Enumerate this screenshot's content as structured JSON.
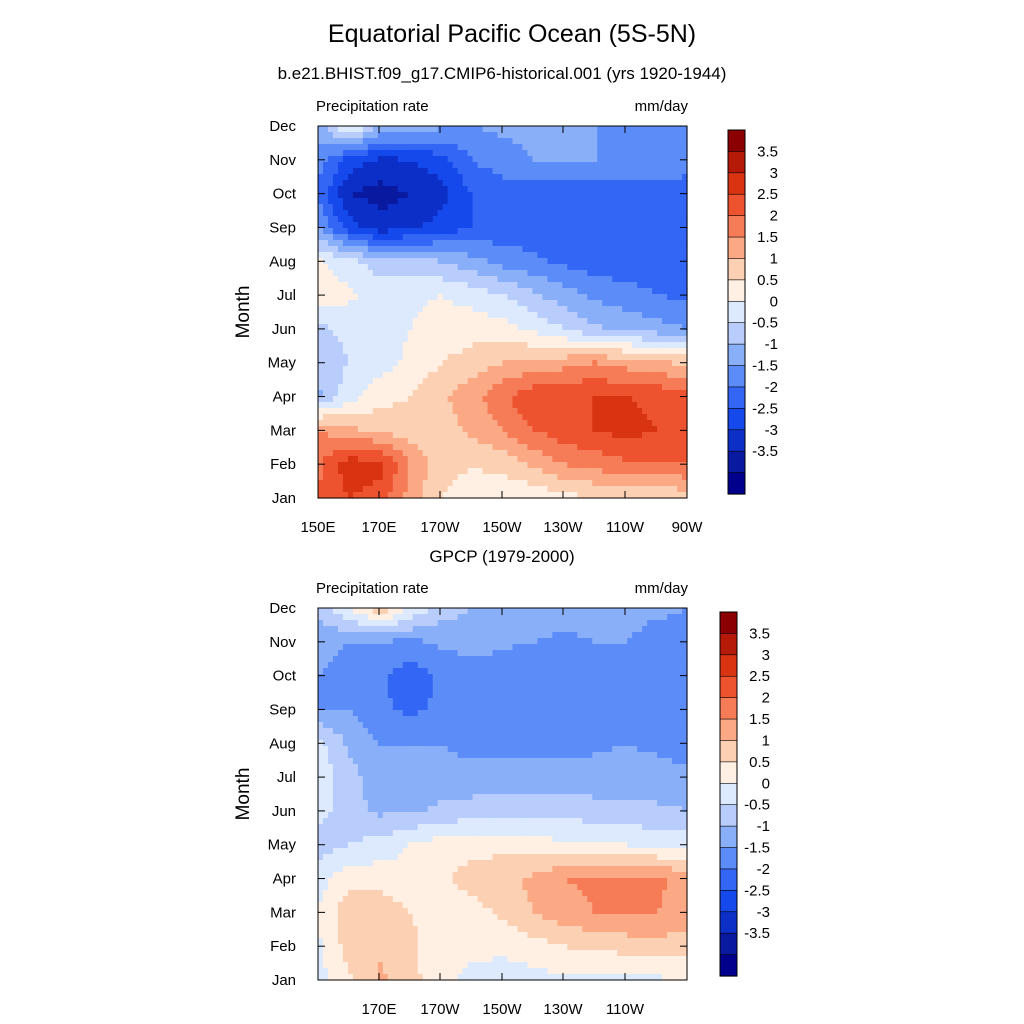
{
  "page": {
    "title": "Equatorial Pacific Ocean (5S-5N)"
  },
  "colors": {
    "levels": [
      "#00008c",
      "#0a1aa0",
      "#0c2fc8",
      "#1549ec",
      "#3366f5",
      "#5c8cf7",
      "#8aaff9",
      "#b8cdfc",
      "#ddeafe",
      "#fff0e3",
      "#fcd0b3",
      "#fba885",
      "#f67b57",
      "#ee5330",
      "#d93412",
      "#b41a07",
      "#8b0000"
    ]
  },
  "chart_data": [
    {
      "type": "contour-fill",
      "title": "b.e21.BHIST.f09_g17.CMIP6-historical.001 (yrs 1920-1944)",
      "left_label": "Precipitation rate",
      "right_label": "mm/day",
      "ylabel": "Month",
      "x_tick_labels": [
        "150E",
        "170E",
        "170W",
        "150W",
        "130W",
        "110W",
        "90W"
      ],
      "y_tick_labels": [
        "Jan",
        "Feb",
        "Mar",
        "Apr",
        "May",
        "Jun",
        "Jul",
        "Aug",
        "Sep",
        "Oct",
        "Nov",
        "Dec"
      ],
      "colorbar_labels": [
        "3.5",
        "3",
        "2.5",
        "2",
        "1.5",
        "1",
        "0.5",
        "0",
        "-0.5",
        "-1",
        "-1.5",
        "-2",
        "-2.5",
        "-3",
        "-3.5"
      ],
      "x_lon": [
        150,
        160,
        170,
        180,
        190,
        200,
        210,
        220,
        230,
        240,
        250,
        260,
        270
      ],
      "months": [
        1,
        2,
        3,
        4,
        5,
        6,
        7,
        8,
        9,
        10,
        11,
        12
      ],
      "values_mm_day": [
        [
          2.5,
          3.0,
          2.8,
          1.8,
          1.0,
          0.8,
          0.5,
          0.6,
          0.8,
          1.0,
          1.0,
          1.0,
          1.2
        ],
        [
          2.4,
          3.3,
          3.2,
          2.0,
          1.2,
          1.0,
          1.2,
          1.6,
          2.0,
          2.2,
          2.4,
          2.5,
          2.5
        ],
        [
          2.0,
          1.6,
          1.4,
          1.2,
          1.3,
          1.6,
          2.0,
          2.5,
          2.8,
          3.0,
          3.2,
          3.0,
          3.0
        ],
        [
          -0.6,
          0.3,
          0.8,
          1.0,
          1.4,
          1.8,
          2.4,
          2.9,
          3.0,
          3.0,
          3.0,
          2.9,
          2.7
        ],
        [
          -0.4,
          0.0,
          0.3,
          0.6,
          1.0,
          1.2,
          1.5,
          1.6,
          1.8,
          2.0,
          1.8,
          1.6,
          1.4
        ],
        [
          -0.2,
          0.2,
          0.3,
          0.5,
          0.7,
          0.8,
          0.7,
          0.4,
          0.0,
          -0.4,
          -0.6,
          -0.8,
          -1.0
        ],
        [
          0.8,
          0.6,
          0.3,
          0.4,
          0.5,
          0.3,
          0.0,
          -0.4,
          -0.8,
          -1.1,
          -1.3,
          -1.5,
          -1.6
        ],
        [
          0.6,
          0.2,
          -0.3,
          -0.4,
          -0.5,
          -0.8,
          -1.2,
          -1.4,
          -1.6,
          -1.8,
          -1.8,
          -1.8,
          -1.8
        ],
        [
          -1.0,
          -2.3,
          -2.8,
          -2.6,
          -2.3,
          -2.0,
          -1.8,
          -1.8,
          -1.8,
          -1.8,
          -1.8,
          -1.8,
          -1.8
        ],
        [
          -1.6,
          -3.0,
          -3.2,
          -3.0,
          -2.7,
          -2.0,
          -1.8,
          -1.8,
          -1.8,
          -1.8,
          -1.8,
          -1.8,
          -1.8
        ],
        [
          -1.2,
          -2.2,
          -2.6,
          -2.5,
          -2.2,
          -1.5,
          -1.2,
          -1.0,
          -1.0,
          -1.0,
          -1.0,
          -1.1,
          -1.2
        ],
        [
          -0.8,
          0.8,
          -0.5,
          -0.7,
          -0.9,
          -1.0,
          -0.9,
          -0.9,
          -1.0,
          -1.0,
          -1.1,
          -1.2,
          -1.3
        ]
      ]
    },
    {
      "type": "contour-fill",
      "title": "GPCP (1979-2000)",
      "left_label": "Precipitation rate",
      "right_label": "mm/day",
      "ylabel": "Month",
      "x_tick_labels": [
        "170E",
        "170W",
        "150W",
        "130W",
        "110W"
      ],
      "y_tick_labels": [
        "Jan",
        "Feb",
        "Mar",
        "Apr",
        "May",
        "Jun",
        "Jul",
        "Aug",
        "Sep",
        "Oct",
        "Nov",
        "Dec"
      ],
      "colorbar_labels": [
        "3.5",
        "3",
        "2.5",
        "2",
        "1.5",
        "1",
        "0.5",
        "0",
        "-0.5",
        "-1",
        "-1.5",
        "-2",
        "-2.5",
        "-3",
        "-3.5"
      ],
      "x_lon": [
        150,
        160,
        170,
        180,
        190,
        200,
        210,
        220,
        230,
        240,
        250,
        260,
        270
      ],
      "months": [
        1,
        2,
        3,
        4,
        5,
        6,
        7,
        8,
        9,
        10,
        11,
        12
      ],
      "values_mm_day": [
        [
          0.3,
          0.9,
          1.6,
          1.2,
          0.6,
          0.4,
          0.3,
          0.3,
          0.4,
          0.4,
          0.3,
          0.4,
          0.5
        ],
        [
          0.4,
          1.2,
          1.4,
          1.1,
          0.7,
          0.6,
          0.6,
          0.8,
          1.0,
          1.1,
          1.2,
          1.3,
          1.2
        ],
        [
          0.5,
          1.4,
          1.3,
          1.0,
          0.8,
          0.8,
          1.1,
          1.5,
          1.8,
          2.0,
          2.1,
          2.0,
          1.9
        ],
        [
          0.3,
          0.8,
          0.8,
          0.7,
          0.9,
          1.2,
          1.4,
          1.6,
          2.0,
          2.1,
          2.0,
          2.1,
          1.8
        ],
        [
          -0.3,
          0.0,
          0.2,
          0.5,
          0.8,
          0.8,
          0.8,
          0.7,
          0.6,
          0.6,
          0.5,
          0.4,
          0.3
        ],
        [
          0.2,
          -0.3,
          -0.6,
          -0.6,
          -0.4,
          -0.3,
          -0.2,
          -0.2,
          -0.2,
          -0.3,
          -0.4,
          -0.4,
          -0.5
        ],
        [
          0.3,
          -0.3,
          -0.8,
          -0.8,
          -0.8,
          -0.8,
          -0.8,
          -0.8,
          -0.8,
          -0.8,
          -0.8,
          -0.8,
          -0.9
        ],
        [
          0.2,
          -0.6,
          -1.0,
          -1.0,
          -1.0,
          -1.2,
          -1.2,
          -1.2,
          -1.2,
          -1.1,
          -1.0,
          -1.1,
          -1.2
        ],
        [
          -1.0,
          -1.0,
          -1.4,
          -1.6,
          -1.4,
          -1.3,
          -1.3,
          -1.3,
          -1.3,
          -1.2,
          -1.1,
          -1.2,
          -1.3
        ],
        [
          -1.0,
          -1.2,
          -1.4,
          -1.8,
          -1.4,
          -1.2,
          -1.3,
          -1.4,
          -1.4,
          -1.2,
          -1.1,
          -1.4,
          -1.3
        ],
        [
          -0.8,
          -1.0,
          -1.0,
          -1.1,
          -0.9,
          -0.8,
          -0.9,
          -1.0,
          -1.1,
          -1.0,
          -1.0,
          -1.2,
          -1.2
        ],
        [
          -0.4,
          0.6,
          1.4,
          0.5,
          -0.2,
          -0.5,
          -0.6,
          -0.7,
          -0.8,
          -0.8,
          -0.8,
          -0.9,
          -1.0
        ]
      ]
    }
  ]
}
